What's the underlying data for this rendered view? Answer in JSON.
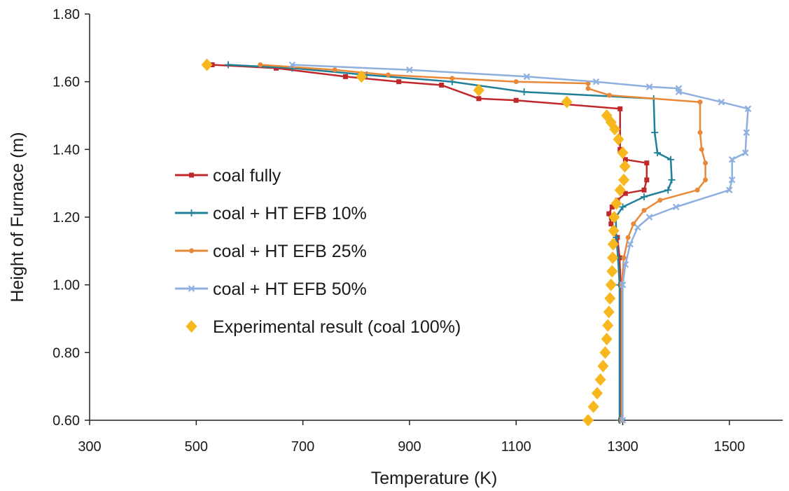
{
  "chart_data": {
    "type": "line",
    "title": "",
    "xlabel": "Temperature (K)",
    "ylabel": "Height of Furnace (m)",
    "xlim": [
      300,
      1600
    ],
    "ylim": [
      0.6,
      1.8
    ],
    "xticks": [
      300,
      500,
      700,
      900,
      1100,
      1300,
      1500
    ],
    "yticks": [
      0.6,
      0.8,
      1.0,
      1.2,
      1.4,
      1.6,
      1.8
    ],
    "xtick_labels": [
      "300",
      "500",
      "700",
      "900",
      "1100",
      "1300",
      "1500"
    ],
    "ytick_labels": [
      "0.60",
      "0.80",
      "1.00",
      "1.20",
      "1.40",
      "1.60",
      "1.80"
    ],
    "grid": false,
    "legend_position": "center-left",
    "series": [
      {
        "name": "coal fully",
        "color": "#c0282b",
        "marker": "square",
        "points": [
          [
            1296,
            0.6
          ],
          [
            1296,
            1.0
          ],
          [
            1294,
            1.08
          ],
          [
            1290,
            1.14
          ],
          [
            1278,
            1.18
          ],
          [
            1274,
            1.21
          ],
          [
            1280,
            1.23
          ],
          [
            1290,
            1.25
          ],
          [
            1305,
            1.27
          ],
          [
            1340,
            1.28
          ],
          [
            1345,
            1.31
          ],
          [
            1345,
            1.36
          ],
          [
            1305,
            1.37
          ],
          [
            1295,
            1.4
          ],
          [
            1295,
            1.52
          ],
          [
            1100,
            1.545
          ],
          [
            1030,
            1.55
          ],
          [
            960,
            1.59
          ],
          [
            880,
            1.6
          ],
          [
            780,
            1.615
          ],
          [
            650,
            1.64
          ],
          [
            530,
            1.65
          ]
        ]
      },
      {
        "name": "coal + HT EFB 10%",
        "color": "#1f8098",
        "marker": "plus",
        "points": [
          [
            1294,
            0.6
          ],
          [
            1294,
            1.0
          ],
          [
            1291,
            1.08
          ],
          [
            1288,
            1.14
          ],
          [
            1287,
            1.2
          ],
          [
            1300,
            1.23
          ],
          [
            1340,
            1.26
          ],
          [
            1385,
            1.28
          ],
          [
            1392,
            1.31
          ],
          [
            1390,
            1.37
          ],
          [
            1365,
            1.39
          ],
          [
            1360,
            1.45
          ],
          [
            1358,
            1.55
          ],
          [
            1115,
            1.57
          ],
          [
            980,
            1.6
          ],
          [
            820,
            1.62
          ],
          [
            680,
            1.64
          ],
          [
            560,
            1.65
          ]
        ]
      },
      {
        "name": "coal + HT EFB 25%",
        "color": "#e8893a",
        "marker": "dot",
        "points": [
          [
            1298,
            0.6
          ],
          [
            1298,
            1.0
          ],
          [
            1302,
            1.08
          ],
          [
            1310,
            1.14
          ],
          [
            1320,
            1.18
          ],
          [
            1340,
            1.22
          ],
          [
            1370,
            1.25
          ],
          [
            1440,
            1.28
          ],
          [
            1455,
            1.31
          ],
          [
            1455,
            1.36
          ],
          [
            1448,
            1.4
          ],
          [
            1445,
            1.45
          ],
          [
            1445,
            1.54
          ],
          [
            1275,
            1.56
          ],
          [
            1235,
            1.58
          ],
          [
            1235,
            1.595
          ],
          [
            1100,
            1.6
          ],
          [
            980,
            1.61
          ],
          [
            860,
            1.62
          ],
          [
            760,
            1.635
          ],
          [
            620,
            1.65
          ]
        ]
      },
      {
        "name": "coal + HT EFB 50%",
        "color": "#8eb0df",
        "marker": "cross",
        "points": [
          [
            1300,
            0.6
          ],
          [
            1300,
            1.0
          ],
          [
            1305,
            1.06
          ],
          [
            1314,
            1.12
          ],
          [
            1328,
            1.17
          ],
          [
            1350,
            1.2
          ],
          [
            1400,
            1.23
          ],
          [
            1500,
            1.28
          ],
          [
            1505,
            1.31
          ],
          [
            1505,
            1.37
          ],
          [
            1530,
            1.39
          ],
          [
            1532,
            1.45
          ],
          [
            1535,
            1.52
          ],
          [
            1485,
            1.54
          ],
          [
            1405,
            1.57
          ],
          [
            1405,
            1.58
          ],
          [
            1350,
            1.585
          ],
          [
            1250,
            1.6
          ],
          [
            1120,
            1.615
          ],
          [
            900,
            1.635
          ],
          [
            680,
            1.65
          ]
        ]
      },
      {
        "name": "Experimental result (coal 100%)",
        "color": "#f7b81f",
        "marker": "diamond",
        "line": false,
        "points": [
          [
            1235,
            0.6
          ],
          [
            1245,
            0.64
          ],
          [
            1252,
            0.68
          ],
          [
            1258,
            0.72
          ],
          [
            1263,
            0.76
          ],
          [
            1267,
            0.8
          ],
          [
            1270,
            0.84
          ],
          [
            1272,
            0.88
          ],
          [
            1274,
            0.92
          ],
          [
            1276,
            0.96
          ],
          [
            1278,
            1.0
          ],
          [
            1280,
            1.04
          ],
          [
            1281,
            1.08
          ],
          [
            1282,
            1.12
          ],
          [
            1283,
            1.16
          ],
          [
            1284,
            1.2
          ],
          [
            1288,
            1.24
          ],
          [
            1295,
            1.28
          ],
          [
            1302,
            1.31
          ],
          [
            1304,
            1.35
          ],
          [
            1300,
            1.39
          ],
          [
            1292,
            1.43
          ],
          [
            1285,
            1.46
          ],
          [
            1278,
            1.48
          ],
          [
            1270,
            1.5
          ],
          [
            1195,
            1.54
          ],
          [
            1030,
            1.575
          ],
          [
            810,
            1.615
          ],
          [
            520,
            1.65
          ]
        ]
      }
    ]
  }
}
